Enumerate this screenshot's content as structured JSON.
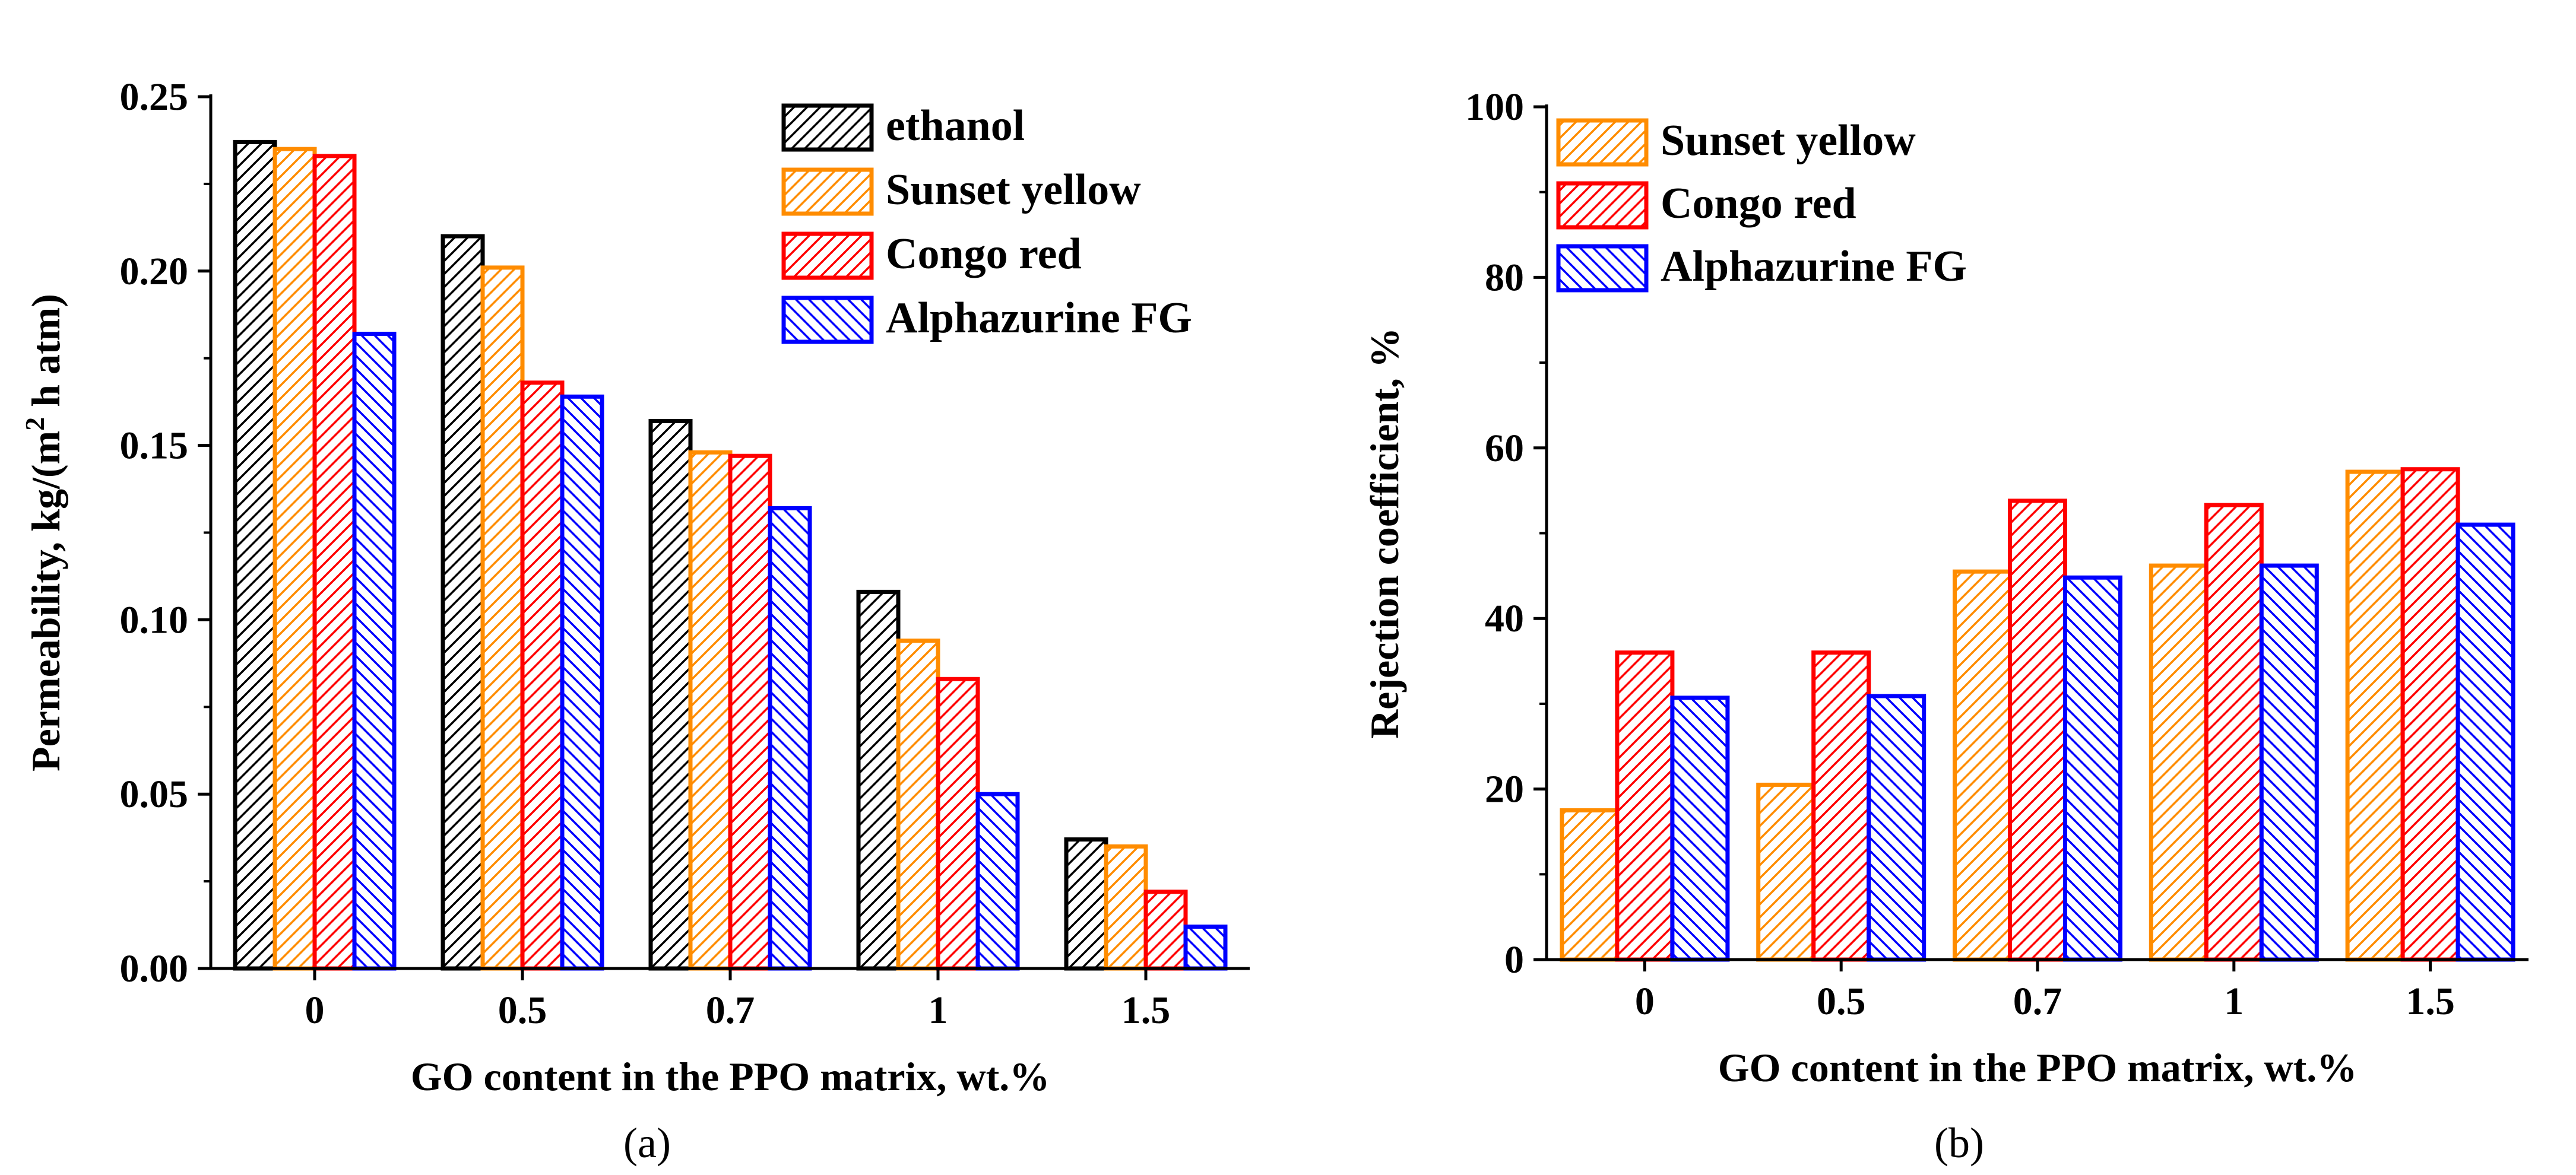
{
  "colors": {
    "ethanol": "#000000",
    "sunset_yellow": "#ff8c00",
    "congo_red": "#ff0000",
    "alphazurine": "#0000ff",
    "hatch_slash": "right-up-diagonal",
    "hatch_back": "left-up-diagonal"
  },
  "chart_data": [
    {
      "id": "a",
      "type": "bar",
      "panel_label": "(a)",
      "categories": [
        "0",
        "0.5",
        "0.7",
        "1",
        "1.5"
      ],
      "xlabel": "GO content in the PPO matrix, wt.%",
      "ylabel_main": "Permeability, kg/(m",
      "ylabel_sup": "2",
      "ylabel_end": " h atm)",
      "ylim": [
        0,
        0.25
      ],
      "yticks": [
        "0.00",
        "0.05",
        "0.10",
        "0.15",
        "0.20",
        "0.25"
      ],
      "ytick_values": [
        0,
        0.05,
        0.1,
        0.15,
        0.2,
        0.25
      ],
      "legend_position": "top-right",
      "series": [
        {
          "name": "ethanol",
          "color": "ethanol",
          "hatch": "slash",
          "values": [
            0.237,
            0.21,
            0.157,
            0.108,
            0.037
          ]
        },
        {
          "name": "Sunset yellow",
          "color": "sunset_yellow",
          "hatch": "slash",
          "values": [
            0.235,
            0.201,
            0.148,
            0.094,
            0.035
          ]
        },
        {
          "name": "Congo red",
          "color": "congo_red",
          "hatch": "slash",
          "values": [
            0.233,
            0.168,
            0.147,
            0.083,
            0.022
          ]
        },
        {
          "name": "Alphazurine FG",
          "color": "alphazurine",
          "hatch": "back",
          "values": [
            0.182,
            0.164,
            0.132,
            0.05,
            0.012
          ]
        }
      ]
    },
    {
      "id": "b",
      "type": "bar",
      "panel_label": "(b)",
      "categories": [
        "0",
        "0.5",
        "0.7",
        "1",
        "1.5"
      ],
      "xlabel": "GO content in the PPO matrix, wt.%",
      "ylabel": "Rejection coefficient, %",
      "ylim": [
        0,
        100
      ],
      "yticks": [
        "0",
        "20",
        "40",
        "60",
        "80",
        "100"
      ],
      "ytick_values": [
        0,
        20,
        40,
        60,
        80,
        100
      ],
      "legend_position": "top-left",
      "series": [
        {
          "name": "Sunset yellow",
          "color": "sunset_yellow",
          "hatch": "slash",
          "values": [
            17.5,
            20.5,
            45.5,
            46.2,
            57.2
          ]
        },
        {
          "name": "Congo red",
          "color": "congo_red",
          "hatch": "slash",
          "values": [
            36.0,
            36.0,
            53.8,
            53.3,
            57.5
          ]
        },
        {
          "name": "Alphazurine FG",
          "color": "alphazurine",
          "hatch": "back",
          "values": [
            30.7,
            30.9,
            44.8,
            46.2,
            51.0
          ]
        }
      ]
    }
  ]
}
